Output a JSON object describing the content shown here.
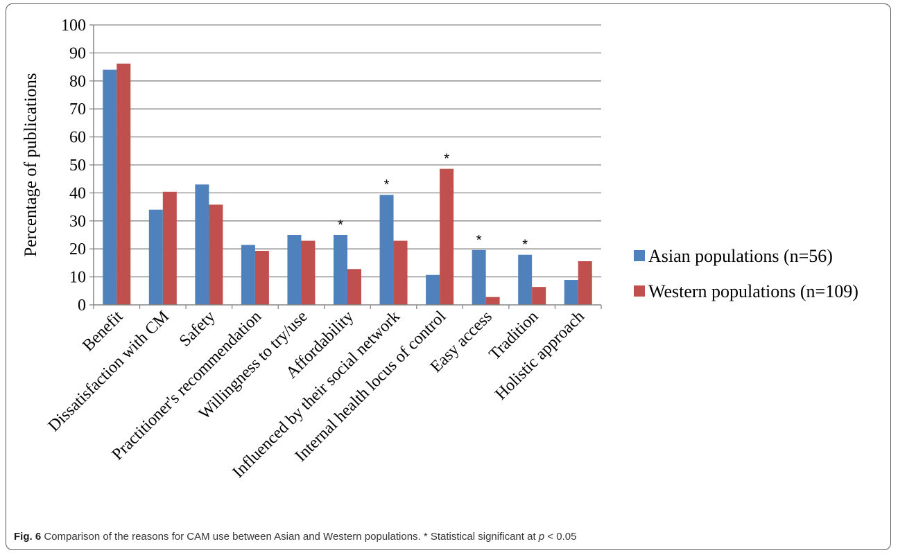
{
  "chart_data": {
    "type": "bar",
    "ylabel": "Percentage of publications",
    "ylim": [
      0,
      100
    ],
    "yticks": [
      0,
      10,
      20,
      30,
      40,
      50,
      60,
      70,
      80,
      90,
      100
    ],
    "grid": true,
    "legend_position": "right",
    "categories": [
      "Benefit",
      "Dissatisfaction with CM",
      "Safety",
      "Practitioner's recommendation",
      "Willingness to try/use",
      "Affordability",
      "Influenced by their social network",
      "Internal health locus of control",
      "Easy access",
      "Tradition",
      "Holistic approach"
    ],
    "series": [
      {
        "name": "Asian populations (n=56)",
        "color": "#4f81bd",
        "values": [
          84,
          34,
          43,
          21.4,
          25,
          25,
          39.3,
          10.7,
          19.6,
          17.9,
          8.9
        ]
      },
      {
        "name": "Western populations (n=109)",
        "color": "#c0504d",
        "values": [
          86.2,
          40.4,
          35.8,
          19.3,
          22.9,
          12.8,
          22.9,
          48.6,
          2.8,
          6.4,
          15.6
        ]
      }
    ],
    "annotations": [
      {
        "category": "Affordability",
        "series": 0,
        "text": "*"
      },
      {
        "category": "Influenced by their social network",
        "series": 0,
        "text": "*"
      },
      {
        "category": "Internal health locus of control",
        "series": 1,
        "text": "*"
      },
      {
        "category": "Easy access",
        "series": 0,
        "text": "*"
      },
      {
        "category": "Tradition",
        "series": 0,
        "text": "*"
      }
    ]
  },
  "caption": {
    "label": "Fig. 6",
    "text_before": " Comparison of the reasons for CAM use between Asian and Western populations. * Statistical significant at ",
    "p_symbol": "p",
    "text_after": " < 0.05"
  }
}
